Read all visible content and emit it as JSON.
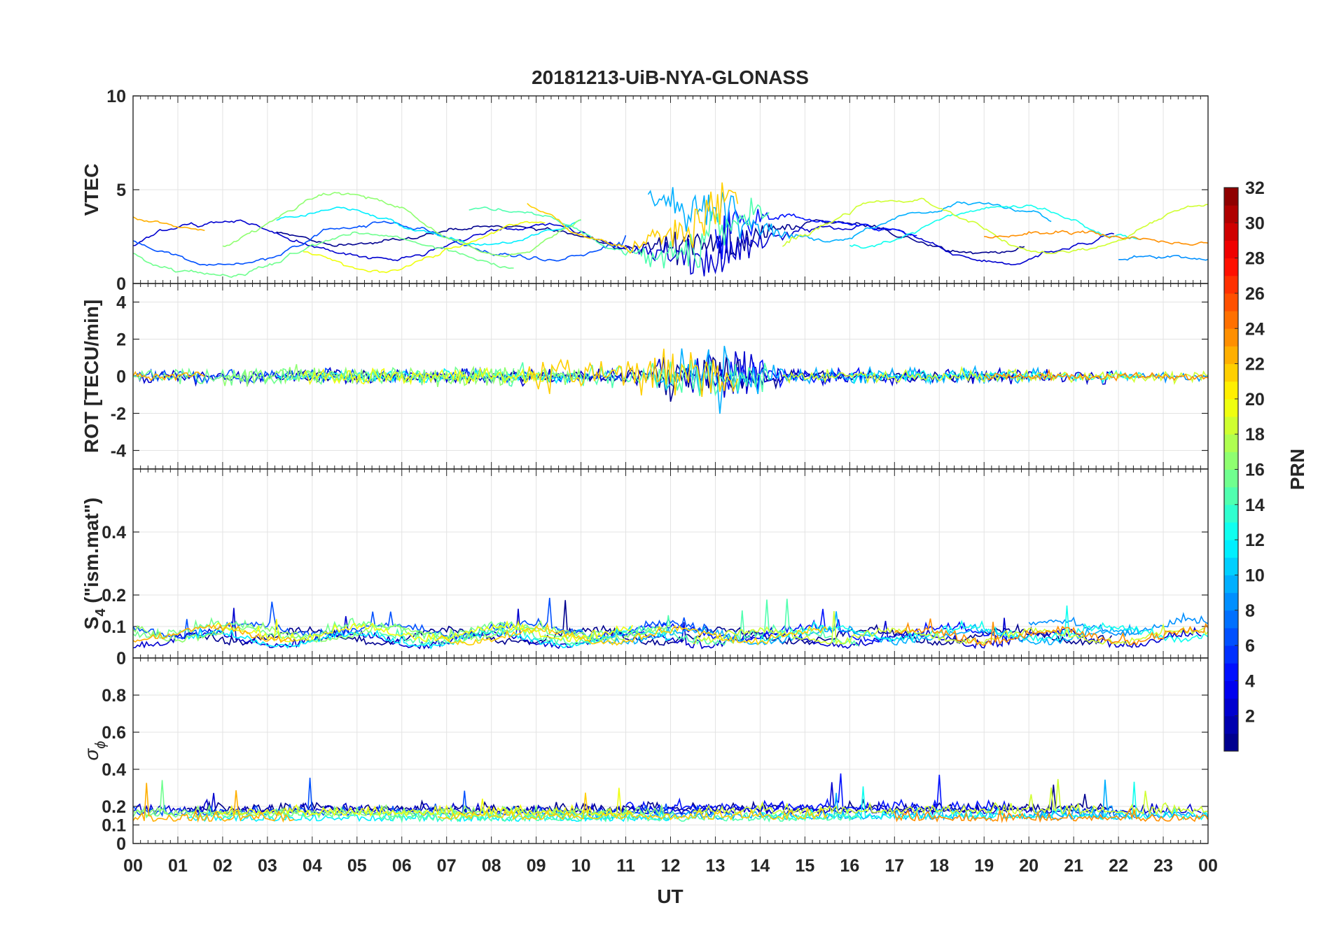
{
  "chart_data": {
    "type": "line",
    "title": "20181213-UiB-NYA-GLONASS",
    "xlabel": "UT",
    "x_tick_labels": [
      "00",
      "01",
      "02",
      "03",
      "04",
      "05",
      "06",
      "07",
      "08",
      "09",
      "10",
      "11",
      "12",
      "13",
      "14",
      "15",
      "16",
      "17",
      "18",
      "19",
      "20",
      "21",
      "22",
      "23",
      "00"
    ],
    "xlim": [
      0,
      24
    ],
    "grid": true,
    "colorbar": {
      "label": "PRN",
      "range": [
        1,
        32
      ],
      "ticks": [
        2,
        4,
        6,
        8,
        10,
        12,
        14,
        16,
        18,
        20,
        22,
        24,
        26,
        28,
        30,
        32
      ],
      "tick_labels": [
        "2",
        "4",
        "6",
        "8",
        "10",
        "12",
        "14",
        "16",
        "18",
        "20",
        "22",
        "24",
        "26",
        "28",
        "30",
        "32"
      ],
      "colormap": "jet",
      "placement": "right"
    },
    "panels": [
      {
        "id": "vtec",
        "ylabel": "VTEC",
        "ylim": [
          0,
          10
        ],
        "y_ticks": [
          0,
          5,
          10
        ],
        "y_tick_labels": [
          "0",
          "5",
          "10"
        ],
        "description_of_data": "Per-PRN VTEC arcs, 0.5-6 TECU, higher around 11-15 UT"
      },
      {
        "id": "rot",
        "ylabel": "ROT [TECU/min]",
        "ylim": [
          -5,
          5
        ],
        "y_ticks": [
          -4,
          -2,
          0,
          2,
          4
        ],
        "y_tick_labels": [
          "-4",
          "-2",
          "0",
          "2",
          "4"
        ]
      },
      {
        "id": "s4",
        "ylabel_main": "S",
        "ylabel_sub": "4",
        "ylabel_rest": " (\"ism.mat\")",
        "ylim": [
          0,
          0.6
        ],
        "y_ticks": [
          0,
          0.1,
          0.2,
          0.4
        ],
        "y_tick_labels": [
          "0",
          "0.1",
          "0.2",
          "0.4"
        ]
      },
      {
        "id": "sigma",
        "ylabel_main": "σ",
        "ylabel_sub": "ϕ",
        "ylim": [
          0,
          1
        ],
        "y_ticks": [
          0,
          0.1,
          0.2,
          0.4,
          0.6,
          0.8
        ],
        "y_tick_labels": [
          "0",
          "0.1",
          "0.2",
          "0.4",
          "0.6",
          "0.8"
        ]
      }
    ],
    "series": [
      {
        "prn": 1,
        "vtec": {
          "start": 3.2,
          "end": 19.9,
          "base": 2.6,
          "amp": 0.7
        },
        "rot_amp": 0.25,
        "s4_base": 0.06,
        "sig_base": 0.17
      },
      {
        "prn": 3,
        "vtec": {
          "start": 0.0,
          "end": 21.9,
          "base": 2.2,
          "amp": 0.9
        },
        "rot_amp": 0.35,
        "s4_base": 0.05,
        "sig_base": 0.16
      },
      {
        "prn": 5,
        "vtec": {
          "start": 13.0,
          "end": 17.5,
          "base": 2.8,
          "amp": 0.8
        },
        "rot_amp": 0.3,
        "s4_base": 0.07,
        "sig_base": 0.18
      },
      {
        "prn": 7,
        "vtec": {
          "start": 0.0,
          "end": 11.0,
          "base": 2.1,
          "amp": 0.8
        },
        "rot_amp": 0.3,
        "s4_base": 0.08,
        "sig_base": 0.15
      },
      {
        "prn": 9,
        "vtec": {
          "start": 22.0,
          "end": 24.0,
          "base": 0.9,
          "amp": 0.5
        },
        "rot_amp": 0.2,
        "s4_base": 0.09,
        "sig_base": 0.14
      },
      {
        "prn": 10,
        "vtec": {
          "start": 11.5,
          "end": 20.5,
          "base": 3.5,
          "amp": 1.0
        },
        "rot_amp": 0.4,
        "s4_base": 0.06,
        "sig_base": 0.13
      },
      {
        "prn": 12,
        "vtec": {
          "start": 3.2,
          "end": 10.0,
          "base": 2.9,
          "amp": 0.9
        },
        "rot_amp": 0.3,
        "s4_base": 0.05,
        "sig_base": 0.12
      },
      {
        "prn": 13,
        "vtec": {
          "start": 16.0,
          "end": 22.5,
          "base": 3.0,
          "amp": 1.0
        },
        "rot_amp": 0.25,
        "s4_base": 0.07,
        "sig_base": 0.13
      },
      {
        "prn": 15,
        "vtec": {
          "start": 7.5,
          "end": 14.2,
          "base": 2.8,
          "amp": 1.2
        },
        "rot_amp": 0.5,
        "s4_base": 0.06,
        "sig_base": 0.12
      },
      {
        "prn": 16,
        "vtec": {
          "start": 0.0,
          "end": 8.5,
          "base": 1.6,
          "amp": 1.0
        },
        "rot_amp": 0.35,
        "s4_base": 0.08,
        "sig_base": 0.14
      },
      {
        "prn": 17,
        "vtec": {
          "start": 2.0,
          "end": 10.0,
          "base": 3.2,
          "amp": 1.5
        },
        "rot_amp": 0.4,
        "s4_base": 0.07,
        "sig_base": 0.15
      },
      {
        "prn": 19,
        "vtec": {
          "start": 14.5,
          "end": 24.0,
          "base": 3.0,
          "amp": 1.4
        },
        "rot_amp": 0.3,
        "s4_base": 0.06,
        "sig_base": 0.16
      },
      {
        "prn": 20,
        "vtec": {
          "start": 3.8,
          "end": 9.2,
          "base": 1.9,
          "amp": 1.1
        },
        "rot_amp": 0.35,
        "s4_base": 0.07,
        "sig_base": 0.15
      },
      {
        "prn": 22,
        "vtec": {
          "start": 8.8,
          "end": 13.5,
          "base": 3.6,
          "amp": 1.6
        },
        "rot_amp": 0.8,
        "s4_base": 0.06,
        "sig_base": 0.13
      },
      {
        "prn": 23,
        "vtec": {
          "start": 0.0,
          "end": 1.6,
          "base": 3.1,
          "amp": 0.4
        },
        "rot_amp": 0.2,
        "s4_base": 0.07,
        "sig_base": 0.12
      },
      {
        "prn": 24,
        "vtec": {
          "start": 19.0,
          "end": 24.0,
          "base": 2.4,
          "amp": 0.6
        },
        "rot_amp": 0.2,
        "s4_base": 0.06,
        "sig_base": 0.12
      }
    ]
  }
}
